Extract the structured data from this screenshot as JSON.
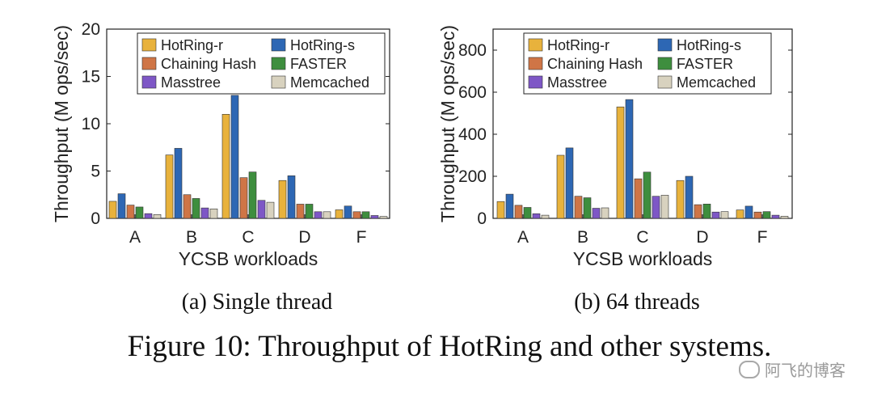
{
  "series_colors": [
    "#E8B23C",
    "#2D67B4",
    "#CF7546",
    "#3E8E3E",
    "#7E57C6",
    "#D8D2BF"
  ],
  "chart_data": [
    {
      "type": "bar",
      "caption": "(a)  Single thread",
      "xlabel": "YCSB workloads",
      "ylabel": "Throughput (M ops/sec)",
      "ylim": [
        0,
        20
      ],
      "yticks": [
        0,
        5,
        10,
        15,
        20
      ],
      "categories": [
        "A",
        "B",
        "C",
        "D",
        "F"
      ],
      "legend_position": "top",
      "series": [
        {
          "name": "HotRing-r",
          "values": [
            1.8,
            6.7,
            11.0,
            4.0,
            0.9
          ]
        },
        {
          "name": "HotRing-s",
          "values": [
            2.6,
            7.4,
            13.0,
            4.5,
            1.3
          ]
        },
        {
          "name": "Chaining Hash",
          "values": [
            1.4,
            2.5,
            4.3,
            1.5,
            0.7
          ]
        },
        {
          "name": "FASTER",
          "values": [
            1.2,
            2.1,
            4.9,
            1.5,
            0.7
          ]
        },
        {
          "name": "Masstree",
          "values": [
            0.5,
            1.1,
            1.9,
            0.7,
            0.3
          ]
        },
        {
          "name": "Memcached",
          "values": [
            0.4,
            1.0,
            1.7,
            0.7,
            0.2
          ]
        }
      ]
    },
    {
      "type": "bar",
      "caption": "(b)  64 threads",
      "xlabel": "YCSB workloads",
      "ylabel": "Throughput (M ops/sec)",
      "ylim": [
        0,
        900
      ],
      "yticks": [
        0,
        200,
        400,
        600,
        800
      ],
      "categories": [
        "A",
        "B",
        "C",
        "D",
        "F"
      ],
      "legend_position": "top",
      "series": [
        {
          "name": "HotRing-r",
          "values": [
            80,
            300,
            530,
            180,
            40
          ]
        },
        {
          "name": "HotRing-s",
          "values": [
            115,
            335,
            565,
            200,
            58
          ]
        },
        {
          "name": "Chaining Hash",
          "values": [
            62,
            105,
            188,
            65,
            30
          ]
        },
        {
          "name": "FASTER",
          "values": [
            52,
            98,
            220,
            68,
            32
          ]
        },
        {
          "name": "Masstree",
          "values": [
            22,
            48,
            105,
            30,
            15
          ]
        },
        {
          "name": "Memcached",
          "values": [
            15,
            50,
            110,
            32,
            10
          ]
        }
      ]
    }
  ],
  "figure_caption": "Figure 10: Throughput of HotRing and other systems.",
  "watermark": "阿飞的博客"
}
